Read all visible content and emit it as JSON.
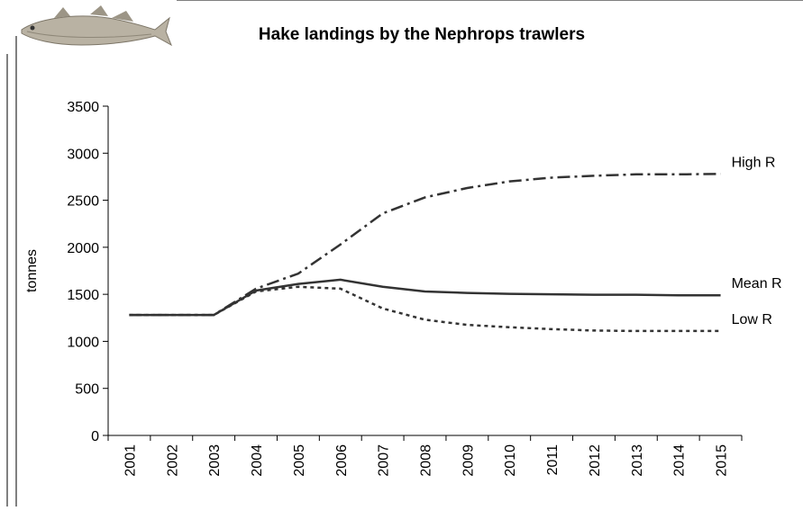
{
  "chart_data": {
    "type": "line",
    "title": "Hake landings by the Nephrops trawlers",
    "y_label": "tonnes",
    "categories": [
      "2001",
      "2002",
      "2003",
      "2004",
      "2005",
      "2006",
      "2007",
      "2008",
      "2009",
      "2010",
      "2011",
      "2012",
      "2013",
      "2014",
      "2015"
    ],
    "series": [
      {
        "name": "High R",
        "color": "#333333",
        "linestyle": "dashdot",
        "values": [
          1280,
          1280,
          1280,
          1560,
          1720,
          2030,
          2360,
          2530,
          2630,
          2700,
          2740,
          2760,
          2775,
          2775,
          2780
        ]
      },
      {
        "name": "Mean R",
        "color": "#333333",
        "linestyle": "solid",
        "values": [
          1280,
          1280,
          1280,
          1540,
          1610,
          1655,
          1580,
          1530,
          1515,
          1505,
          1500,
          1495,
          1495,
          1490,
          1490
        ]
      },
      {
        "name": "Low R",
        "color": "#333333",
        "linestyle": "dotted",
        "values": [
          1280,
          1280,
          1280,
          1530,
          1580,
          1560,
          1350,
          1230,
          1175,
          1150,
          1130,
          1115,
          1110,
          1110,
          1110
        ]
      }
    ],
    "ylim": [
      0,
      3500
    ],
    "yticks": [
      0,
      500,
      1000,
      1500,
      2000,
      2500,
      3000,
      3500
    ],
    "grid": false
  }
}
